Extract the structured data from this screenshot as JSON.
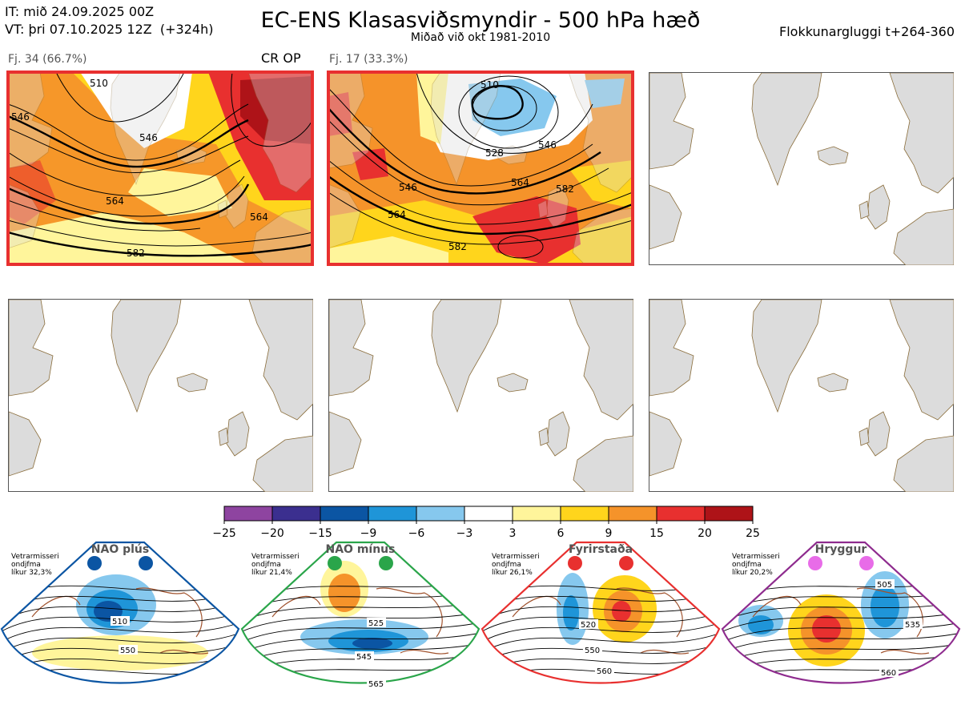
{
  "header": {
    "it_line": "IT: mið 24.09.2025 00Z",
    "vt_line": "VT: þri 07.10.2025 12Z  (+324h)",
    "title": "EC-ENS Klasasviðsmyndir - 500 hPa hæð",
    "subtitle": "Miðað við okt 1981-2010",
    "window": "Flokkunargluggi t+264-360"
  },
  "panels": [
    {
      "label": "Fj. 34 (66.7%)",
      "tag": "CR OP",
      "contours": [
        "510",
        "546",
        "564",
        "582",
        "546",
        "564"
      ]
    },
    {
      "label": "Fj. 17 (33.3%)",
      "tag": "",
      "contours": [
        "510",
        "528",
        "546",
        "546",
        "564",
        "564",
        "582",
        "582"
      ]
    }
  ],
  "colorbar": {
    "ticks": [
      "−25",
      "−20",
      "−15",
      "−9",
      "−6",
      "−3",
      "3",
      "6",
      "9",
      "15",
      "20",
      "25"
    ],
    "colors": [
      "#8e44a0",
      "#3b2f8f",
      "#0b55a3",
      "#1f95d8",
      "#86c8ee",
      "#ffffff",
      "#fff59b",
      "#ffd51c",
      "#f5932a",
      "#e8302f",
      "#ae1318"
    ]
  },
  "regimes": [
    {
      "title": "NAO plús",
      "info": [
        "Vetrarmisseri",
        "ondjfma",
        "líkur 32,3%"
      ],
      "labels": [
        "510",
        "550"
      ],
      "color": "#0b55a3",
      "dot": "#0b55a3"
    },
    {
      "title": "NAO mínus",
      "info": [
        "Vetrarmisseri",
        "ondjfma",
        "líkur 21,4%"
      ],
      "labels": [
        "525",
        "545",
        "565"
      ],
      "color": "#2aa54a",
      "dot": "#2aa54a"
    },
    {
      "title": "Fyrirstaða",
      "info": [
        "Vetrarmisseri",
        "ondjfma",
        "líkur 26,1%"
      ],
      "labels": [
        "520",
        "550",
        "560"
      ],
      "color": "#e8302f",
      "dot": "#e8302f"
    },
    {
      "title": "Hryggur",
      "info": [
        "Vetrarmisseri",
        "ondjfma",
        "líkur 20,2%"
      ],
      "labels": [
        "505",
        "535",
        "560"
      ],
      "color": "#8e2b8e",
      "dot": "#e86ce8"
    }
  ],
  "chart_data": {
    "type": "heatmap",
    "title": "EC-ENS Klasasviðsmyndir - 500 hPa hæð",
    "xlabel": "",
    "ylabel": "",
    "colorbar_range": [
      -25,
      25
    ],
    "colorbar_bounds": [
      -25,
      -20,
      -15,
      -9,
      -6,
      -3,
      3,
      6,
      9,
      15,
      20,
      25
    ],
    "series": [
      {
        "name": "Fj. 34 (66.7%)",
        "probability_percent": 66.7,
        "members": 34,
        "contour_labels": [
          510,
          546,
          564,
          582
        ]
      },
      {
        "name": "Fj. 17 (33.3%)",
        "probability_percent": 33.3,
        "members": 17,
        "contour_labels": [
          510,
          528,
          546,
          564,
          582
        ]
      }
    ],
    "regimes": [
      {
        "name": "NAO plús",
        "probability_percent": 32.3,
        "contour_labels": [
          510,
          550
        ]
      },
      {
        "name": "NAO mínus",
        "probability_percent": 21.4,
        "contour_labels": [
          525,
          545,
          565
        ]
      },
      {
        "name": "Fyrirstaða",
        "probability_percent": 26.1,
        "contour_labels": [
          520,
          550,
          560
        ]
      },
      {
        "name": "Hryggur",
        "probability_percent": 20.2,
        "contour_labels": [
          505,
          535,
          560
        ]
      }
    ]
  }
}
